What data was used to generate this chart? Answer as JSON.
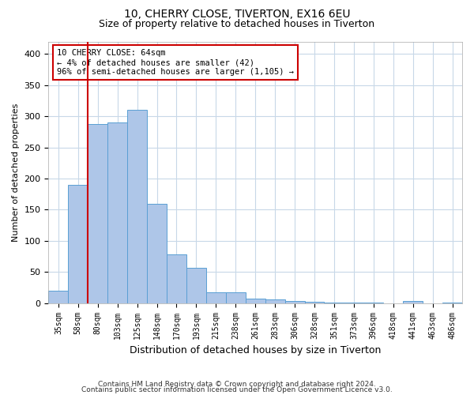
{
  "title1": "10, CHERRY CLOSE, TIVERTON, EX16 6EU",
  "title2": "Size of property relative to detached houses in Tiverton",
  "xlabel": "Distribution of detached houses by size in Tiverton",
  "ylabel": "Number of detached properties",
  "categories": [
    "35sqm",
    "58sqm",
    "80sqm",
    "103sqm",
    "125sqm",
    "148sqm",
    "170sqm",
    "193sqm",
    "215sqm",
    "238sqm",
    "261sqm",
    "283sqm",
    "306sqm",
    "328sqm",
    "351sqm",
    "373sqm",
    "396sqm",
    "418sqm",
    "441sqm",
    "463sqm",
    "486sqm"
  ],
  "values": [
    20,
    190,
    288,
    290,
    310,
    160,
    78,
    57,
    18,
    18,
    7,
    6,
    4,
    2,
    1,
    1,
    1,
    0,
    4,
    0,
    1
  ],
  "bar_color": "#aec6e8",
  "bar_edge_color": "#5a9fd4",
  "vline_x": 1.5,
  "vline_color": "#cc0000",
  "annotation_text": "10 CHERRY CLOSE: 64sqm\n← 4% of detached houses are smaller (42)\n96% of semi-detached houses are larger (1,105) →",
  "annotation_box_color": "#ffffff",
  "annotation_box_edge": "#cc0000",
  "ylim": [
    0,
    420
  ],
  "yticks": [
    0,
    50,
    100,
    150,
    200,
    250,
    300,
    350,
    400
  ],
  "footer1": "Contains HM Land Registry data © Crown copyright and database right 2024.",
  "footer2": "Contains public sector information licensed under the Open Government Licence v3.0.",
  "background_color": "#ffffff",
  "grid_color": "#c8d8e8",
  "title1_fontsize": 10,
  "title2_fontsize": 9,
  "ylabel_fontsize": 8,
  "xlabel_fontsize": 9,
  "tick_fontsize": 7,
  "annot_fontsize": 7.5
}
